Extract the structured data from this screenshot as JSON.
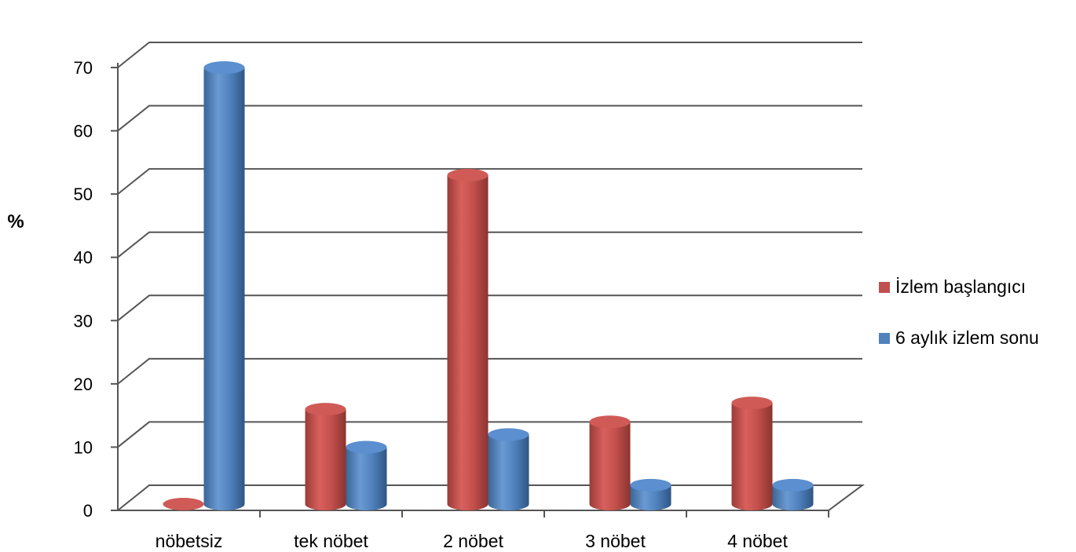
{
  "chart_data": {
    "type": "bar",
    "style": "3d-cylinder",
    "ylabel": "%",
    "ylim": [
      0,
      70
    ],
    "yticks": [
      0,
      10,
      20,
      30,
      40,
      50,
      60,
      70
    ],
    "grid": true,
    "legend_position": "right",
    "categories": [
      "nöbetsiz",
      "tek nöbet",
      "2 nöbet",
      "3 nöbet",
      "4 nöbet"
    ],
    "series": [
      {
        "name": "İzlem başlangıcı",
        "color": "#c0504d",
        "values": [
          0,
          15,
          52,
          13,
          16
        ]
      },
      {
        "name": "6 aylık izlem sonu",
        "color": "#4f81bd",
        "values": [
          69,
          9,
          11,
          3,
          3
        ]
      }
    ]
  }
}
